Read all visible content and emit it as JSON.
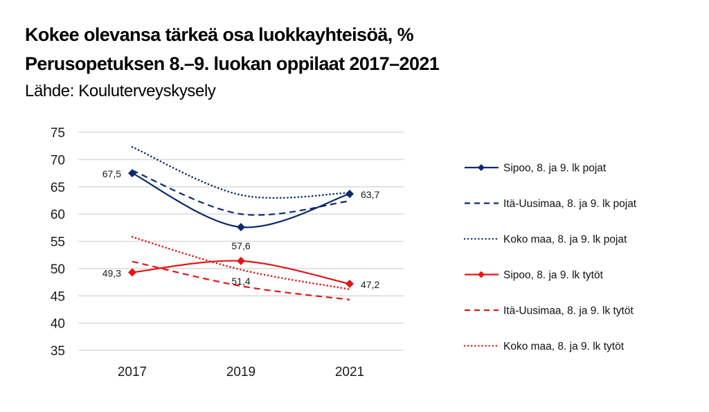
{
  "chart_data": {
    "type": "line",
    "title": "Kokee olevansa tärkeä osa luokkayhteisöä, %",
    "subtitle": "Perusopetuksen 8.–9. luokan oppilaat 2017–2021",
    "source": "Lähde: Kouluterveyskysely",
    "xlabel": "",
    "ylabel": "",
    "x": [
      "2017",
      "2019",
      "2021"
    ],
    "ylim": [
      35,
      75
    ],
    "yticks": [
      "75",
      "70",
      "65",
      "60",
      "55",
      "50",
      "45",
      "40",
      "35"
    ],
    "grid": true,
    "legend_position": "right",
    "series": [
      {
        "name": "Sipoo, 8. ja 9. lk pojat",
        "values": [
          67.5,
          57.6,
          63.7
        ],
        "color": "#0b2a6b",
        "style": "solid",
        "marker": "diamond",
        "labels": [
          "67,5",
          "57,6",
          "63,7"
        ]
      },
      {
        "name": "Itä-Uusimaa, 8. ja 9. lk pojat",
        "values": [
          68.0,
          60.0,
          62.4
        ],
        "color": "#0b2a6b",
        "style": "dashed",
        "marker": "none"
      },
      {
        "name": "Koko maa, 8. ja 9. lk pojat",
        "values": [
          72.3,
          63.5,
          63.9
        ],
        "color": "#0b2a6b",
        "style": "dotted",
        "marker": "none"
      },
      {
        "name": "Sipoo, 8. ja 9. lk tytöt",
        "values": [
          49.3,
          51.4,
          47.2
        ],
        "color": "#e31414",
        "style": "solid",
        "marker": "diamond",
        "labels": [
          "49,3",
          "51,4",
          "47,2"
        ]
      },
      {
        "name": "Itä-Uusimaa, 8. ja 9. lk tytöt",
        "values": [
          51.3,
          46.8,
          44.3
        ],
        "color": "#e31414",
        "style": "dashed",
        "marker": "none"
      },
      {
        "name": "Koko maa, 8. ja 9. lk tytöt",
        "values": [
          55.8,
          49.8,
          46.2
        ],
        "color": "#e31414",
        "style": "dotted",
        "marker": "none"
      }
    ]
  }
}
